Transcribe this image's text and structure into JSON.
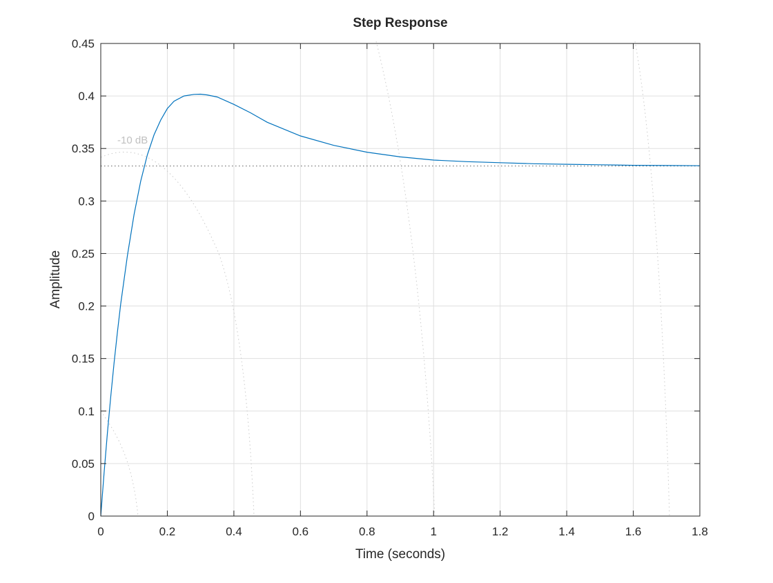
{
  "chart_data": {
    "type": "line",
    "title": "Step Response",
    "xlabel": "Time (seconds)",
    "ylabel": "Amplitude",
    "xlim": [
      0,
      1.8
    ],
    "ylim": [
      0,
      0.45
    ],
    "xticks": [
      0,
      0.2,
      0.4,
      0.6,
      0.8,
      1,
      1.2,
      1.4,
      1.6,
      1.8
    ],
    "xtick_labels": [
      "0",
      "0.2",
      "0.4",
      "0.6",
      "0.8",
      "1",
      "1.2",
      "1.4",
      "1.6",
      "1.8"
    ],
    "yticks": [
      0,
      0.05,
      0.1,
      0.15,
      0.2,
      0.25,
      0.3,
      0.35,
      0.4,
      0.45
    ],
    "ytick_labels": [
      "0",
      "0.05",
      "0.1",
      "0.15",
      "0.2",
      "0.25",
      "0.3",
      "0.35",
      "0.4",
      "0.45"
    ],
    "grid": true,
    "steady_state": 0.3333,
    "series": [
      {
        "color": "#0072BD",
        "x": [
          0,
          0.01,
          0.02,
          0.03,
          0.04,
          0.05,
          0.06,
          0.08,
          0.1,
          0.12,
          0.14,
          0.16,
          0.18,
          0.2,
          0.22,
          0.25,
          0.28,
          0.3,
          0.32,
          0.35,
          0.4,
          0.45,
          0.5,
          0.6,
          0.7,
          0.8,
          0.9,
          1.0,
          1.1,
          1.2,
          1.3,
          1.4,
          1.5,
          1.6,
          1.7,
          1.8
        ],
        "y": [
          0,
          0.041,
          0.079,
          0.114,
          0.146,
          0.175,
          0.202,
          0.248,
          0.287,
          0.319,
          0.344,
          0.363,
          0.377,
          0.388,
          0.395,
          0.4,
          0.4015,
          0.4017,
          0.401,
          0.399,
          0.392,
          0.384,
          0.375,
          0.362,
          0.353,
          0.3465,
          0.342,
          0.339,
          0.3375,
          0.3365,
          0.3355,
          0.335,
          0.3345,
          0.334,
          0.3338,
          0.3336
        ]
      }
    ],
    "grid_annotation": "-10 dB"
  }
}
